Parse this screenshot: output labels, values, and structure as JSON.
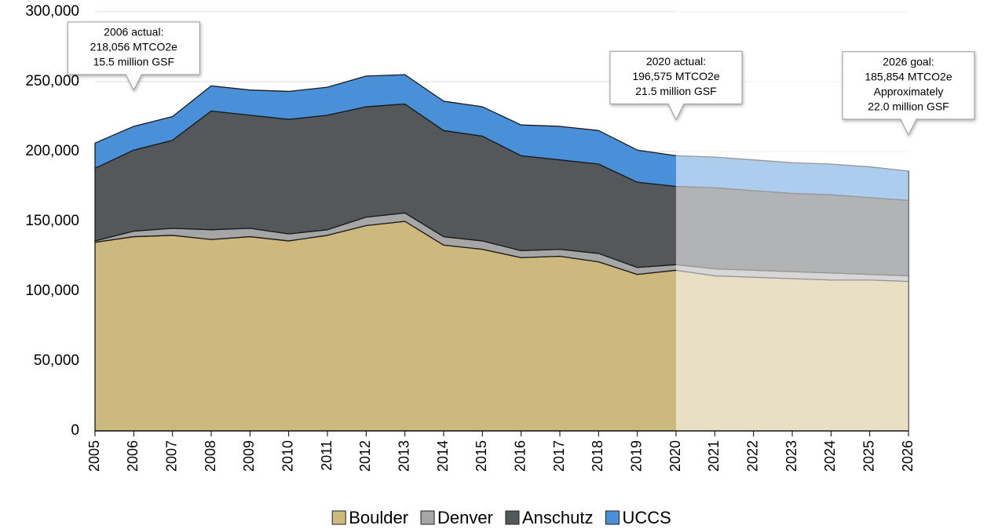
{
  "chart_data": {
    "type": "stacked_area",
    "categories": [
      "2005",
      "2006",
      "2007",
      "2008",
      "2009",
      "2010",
      "2011",
      "2012",
      "2013",
      "2014",
      "2015",
      "2016",
      "2017",
      "2018",
      "2019",
      "2020",
      "2021",
      "2022",
      "2023",
      "2024",
      "2025",
      "2026"
    ],
    "series": [
      {
        "name": "Boulder",
        "color": "#cdb87d",
        "values": [
          135000,
          139000,
          140000,
          137000,
          139000,
          136000,
          140000,
          147000,
          150000,
          133000,
          130000,
          124000,
          125000,
          121000,
          112000,
          115000,
          111000,
          110000,
          109000,
          108000,
          108000,
          107000
        ]
      },
      {
        "name": "Denver",
        "color": "#a6a6a6",
        "values": [
          1000,
          4000,
          5000,
          7000,
          6000,
          5000,
          4000,
          6000,
          6000,
          6000,
          6000,
          5000,
          5000,
          6000,
          5000,
          4000,
          5000,
          5000,
          5000,
          5000,
          4000,
          4000
        ]
      },
      {
        "name": "Anschutz",
        "color": "#54585b",
        "values": [
          52000,
          58000,
          63000,
          85000,
          81000,
          82000,
          82000,
          79000,
          78000,
          76000,
          75000,
          68000,
          64000,
          64000,
          61000,
          56000,
          58000,
          57000,
          56000,
          56000,
          55000,
          54000
        ]
      },
      {
        "name": "UCCS",
        "color": "#4a90d9",
        "values": [
          18000,
          17000,
          17000,
          18000,
          18000,
          20000,
          20000,
          22000,
          21000,
          21000,
          21000,
          22000,
          24000,
          24000,
          23000,
          22000,
          22000,
          22000,
          22000,
          22000,
          22000,
          21000
        ]
      }
    ],
    "ylim": [
      0,
      300000
    ],
    "yticks": [
      0,
      {
        "value": 50000,
        "label": "50,000"
      },
      {
        "value": 100000,
        "label": "100,000"
      },
      {
        "value": 150000,
        "label": "150,000"
      },
      {
        "value": 200000,
        "label": "200,000"
      },
      {
        "value": 250000,
        "label": "250,000"
      },
      {
        "value": 300000,
        "label": "300,000"
      }
    ],
    "grid": true,
    "legend": "bottom",
    "annotations": [
      {
        "x": "2006",
        "text": [
          "2006 actual:",
          "218,056 MTCO2e",
          "15.5 million GSF"
        ]
      },
      {
        "x": "2020",
        "text": [
          "2020 actual:",
          "196,575 MTCO2e",
          "21.5 million GSF"
        ]
      },
      {
        "x": "2026",
        "text": [
          "2026 goal:",
          "185,854 MTCO2e",
          "Approximately",
          "22.0 million GSF"
        ]
      }
    ]
  }
}
